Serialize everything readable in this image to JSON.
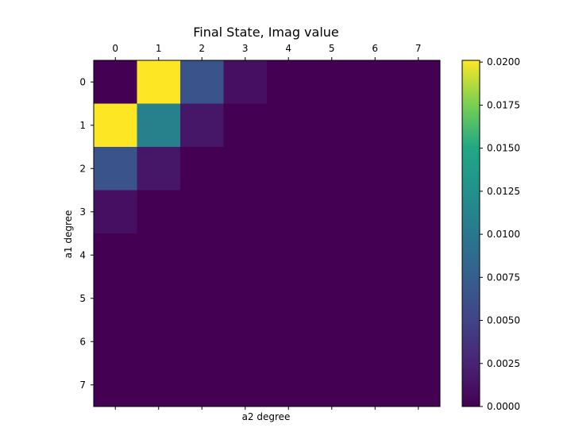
{
  "chart_data": {
    "type": "heatmap",
    "title": "Final State, Imag value",
    "xlabel": "a2 degree",
    "ylabel": "a1 degree",
    "x_ticks": [
      "0",
      "1",
      "2",
      "3",
      "4",
      "5",
      "6",
      "7"
    ],
    "y_ticks": [
      "0",
      "1",
      "2",
      "3",
      "4",
      "5",
      "6",
      "7"
    ],
    "colormap": "viridis",
    "vmin": 0.0,
    "vmax": 0.0201,
    "colorbar_ticks": [
      "0.0000",
      "0.0025",
      "0.0050",
      "0.0075",
      "0.0100",
      "0.0125",
      "0.0150",
      "0.0175",
      "0.0200"
    ],
    "values": [
      [
        0.0,
        0.0201,
        0.0065,
        0.001,
        0.0,
        0.0,
        0.0,
        0.0
      ],
      [
        0.0201,
        0.011,
        0.0015,
        0.0,
        0.0,
        0.0,
        0.0,
        0.0
      ],
      [
        0.0065,
        0.0015,
        0.0,
        0.0,
        0.0,
        0.0,
        0.0,
        0.0
      ],
      [
        0.001,
        0.0,
        0.0,
        0.0,
        0.0,
        0.0,
        0.0,
        0.0
      ],
      [
        0.0,
        0.0,
        0.0,
        0.0,
        0.0,
        0.0,
        0.0,
        0.0
      ],
      [
        0.0,
        0.0,
        0.0,
        0.0,
        0.0,
        0.0,
        0.0,
        0.0
      ],
      [
        0.0,
        0.0,
        0.0,
        0.0,
        0.0,
        0.0,
        0.0,
        0.0
      ],
      [
        0.0,
        0.0,
        0.0,
        0.0,
        0.0,
        0.0,
        0.0,
        0.0
      ]
    ],
    "grid": false,
    "colorbar_position": "right"
  }
}
